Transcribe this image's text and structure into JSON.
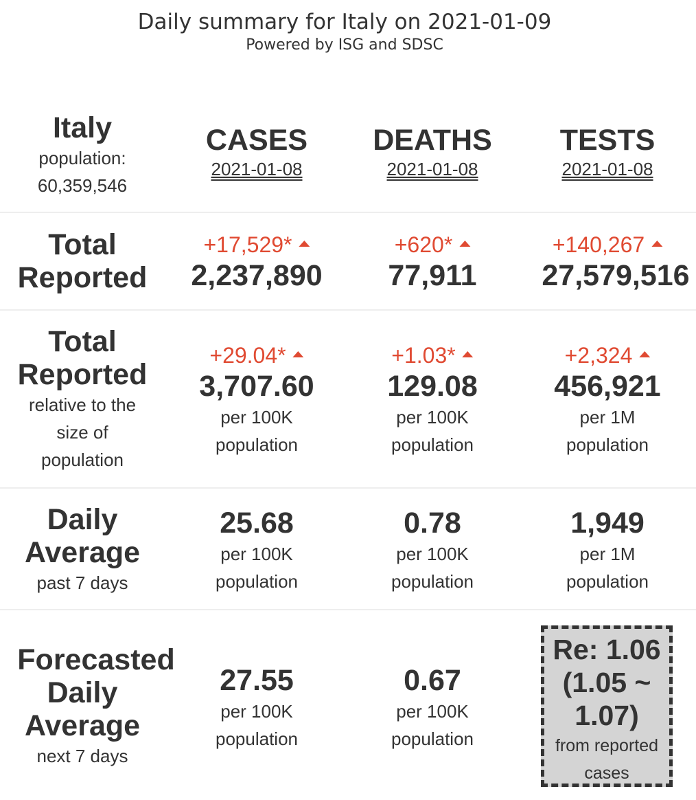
{
  "header": {
    "title": "Daily summary for Italy on 2021-01-09",
    "subtitle": "Powered by ISG and SDSC"
  },
  "country": {
    "name": "Italy",
    "population_label": "population:",
    "population_value": "60,359,546"
  },
  "columns": [
    {
      "name": "CASES",
      "date": "2021-01-08"
    },
    {
      "name": "DEATHS",
      "date": "2021-01-08"
    },
    {
      "name": "TESTS",
      "date": "2021-01-08"
    }
  ],
  "rows": {
    "total_reported": {
      "label_line1": "Total",
      "label_line2": "Reported",
      "cells": [
        {
          "delta": "+17,529*",
          "value": "2,237,890"
        },
        {
          "delta": "+620*",
          "value": "77,911"
        },
        {
          "delta": "+140,267",
          "value": "27,579,516"
        }
      ]
    },
    "relative": {
      "label_line1": "Total",
      "label_line2": "Reported",
      "sub_line1": "relative to the",
      "sub_line2": "size of",
      "sub_line3": "population",
      "cells": [
        {
          "delta": "+29.04*",
          "value": "3,707.60",
          "unit1": "per 100K",
          "unit2": "population"
        },
        {
          "delta": "+1.03*",
          "value": "129.08",
          "unit1": "per 100K",
          "unit2": "population"
        },
        {
          "delta": "+2,324",
          "value": "456,921",
          "unit1": "per 1M",
          "unit2": "population"
        }
      ]
    },
    "daily_average": {
      "label_line1": "Daily",
      "label_line2": "Average",
      "sub_line1": "past 7 days",
      "cells": [
        {
          "value": "25.68",
          "unit1": "per 100K",
          "unit2": "population"
        },
        {
          "value": "0.78",
          "unit1": "per 100K",
          "unit2": "population"
        },
        {
          "value": "1,949",
          "unit1": "per 1M",
          "unit2": "population"
        }
      ]
    },
    "forecast": {
      "label_line1": "Forecasted",
      "label_line2": "Daily",
      "label_line3": "Average",
      "sub_line1": "next 7 days",
      "cells": [
        {
          "value": "27.55",
          "unit1": "per 100K",
          "unit2": "population"
        },
        {
          "value": "0.67",
          "unit1": "per 100K",
          "unit2": "population"
        }
      ],
      "re": {
        "line1": "Re: 1.06",
        "line2": "(1.05 ~",
        "line3": "1.07)",
        "sub1": "from reported",
        "sub2": "cases"
      }
    }
  },
  "colors": {
    "increase": "#e04a32",
    "text": "#333333",
    "re_box_bg": "#d4d4d4"
  },
  "icons": {
    "increase": "triangle-up-icon"
  }
}
